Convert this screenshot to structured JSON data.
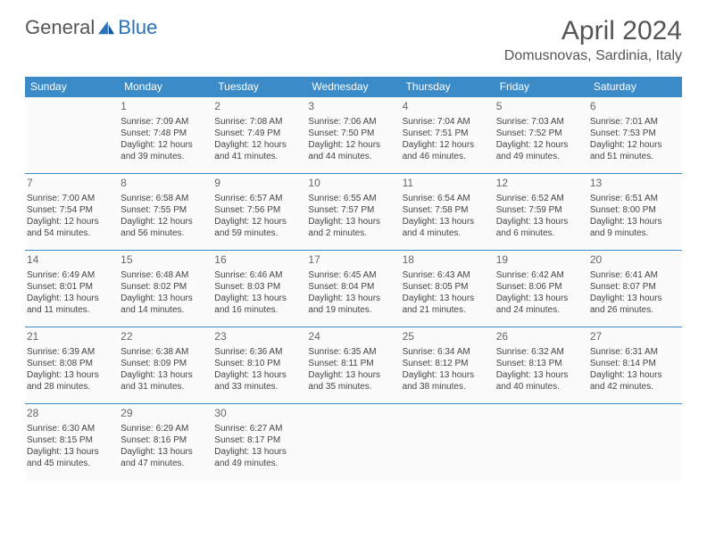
{
  "brand": {
    "part1": "General",
    "part2": "Blue"
  },
  "title": "April 2024",
  "location": "Domusnovas, Sardinia, Italy",
  "colors": {
    "header_bg": "#3b8bc9",
    "header_text": "#ffffff",
    "cell_border": "#3b8bc9",
    "text": "#444444",
    "brand_blue": "#2a71b8"
  },
  "day_headers": [
    "Sunday",
    "Monday",
    "Tuesday",
    "Wednesday",
    "Thursday",
    "Friday",
    "Saturday"
  ],
  "weeks": [
    [
      null,
      {
        "n": "1",
        "sr": "Sunrise: 7:09 AM",
        "ss": "Sunset: 7:48 PM",
        "d1": "Daylight: 12 hours",
        "d2": "and 39 minutes."
      },
      {
        "n": "2",
        "sr": "Sunrise: 7:08 AM",
        "ss": "Sunset: 7:49 PM",
        "d1": "Daylight: 12 hours",
        "d2": "and 41 minutes."
      },
      {
        "n": "3",
        "sr": "Sunrise: 7:06 AM",
        "ss": "Sunset: 7:50 PM",
        "d1": "Daylight: 12 hours",
        "d2": "and 44 minutes."
      },
      {
        "n": "4",
        "sr": "Sunrise: 7:04 AM",
        "ss": "Sunset: 7:51 PM",
        "d1": "Daylight: 12 hours",
        "d2": "and 46 minutes."
      },
      {
        "n": "5",
        "sr": "Sunrise: 7:03 AM",
        "ss": "Sunset: 7:52 PM",
        "d1": "Daylight: 12 hours",
        "d2": "and 49 minutes."
      },
      {
        "n": "6",
        "sr": "Sunrise: 7:01 AM",
        "ss": "Sunset: 7:53 PM",
        "d1": "Daylight: 12 hours",
        "d2": "and 51 minutes."
      }
    ],
    [
      {
        "n": "7",
        "sr": "Sunrise: 7:00 AM",
        "ss": "Sunset: 7:54 PM",
        "d1": "Daylight: 12 hours",
        "d2": "and 54 minutes."
      },
      {
        "n": "8",
        "sr": "Sunrise: 6:58 AM",
        "ss": "Sunset: 7:55 PM",
        "d1": "Daylight: 12 hours",
        "d2": "and 56 minutes."
      },
      {
        "n": "9",
        "sr": "Sunrise: 6:57 AM",
        "ss": "Sunset: 7:56 PM",
        "d1": "Daylight: 12 hours",
        "d2": "and 59 minutes."
      },
      {
        "n": "10",
        "sr": "Sunrise: 6:55 AM",
        "ss": "Sunset: 7:57 PM",
        "d1": "Daylight: 13 hours",
        "d2": "and 2 minutes."
      },
      {
        "n": "11",
        "sr": "Sunrise: 6:54 AM",
        "ss": "Sunset: 7:58 PM",
        "d1": "Daylight: 13 hours",
        "d2": "and 4 minutes."
      },
      {
        "n": "12",
        "sr": "Sunrise: 6:52 AM",
        "ss": "Sunset: 7:59 PM",
        "d1": "Daylight: 13 hours",
        "d2": "and 6 minutes."
      },
      {
        "n": "13",
        "sr": "Sunrise: 6:51 AM",
        "ss": "Sunset: 8:00 PM",
        "d1": "Daylight: 13 hours",
        "d2": "and 9 minutes."
      }
    ],
    [
      {
        "n": "14",
        "sr": "Sunrise: 6:49 AM",
        "ss": "Sunset: 8:01 PM",
        "d1": "Daylight: 13 hours",
        "d2": "and 11 minutes."
      },
      {
        "n": "15",
        "sr": "Sunrise: 6:48 AM",
        "ss": "Sunset: 8:02 PM",
        "d1": "Daylight: 13 hours",
        "d2": "and 14 minutes."
      },
      {
        "n": "16",
        "sr": "Sunrise: 6:46 AM",
        "ss": "Sunset: 8:03 PM",
        "d1": "Daylight: 13 hours",
        "d2": "and 16 minutes."
      },
      {
        "n": "17",
        "sr": "Sunrise: 6:45 AM",
        "ss": "Sunset: 8:04 PM",
        "d1": "Daylight: 13 hours",
        "d2": "and 19 minutes."
      },
      {
        "n": "18",
        "sr": "Sunrise: 6:43 AM",
        "ss": "Sunset: 8:05 PM",
        "d1": "Daylight: 13 hours",
        "d2": "and 21 minutes."
      },
      {
        "n": "19",
        "sr": "Sunrise: 6:42 AM",
        "ss": "Sunset: 8:06 PM",
        "d1": "Daylight: 13 hours",
        "d2": "and 24 minutes."
      },
      {
        "n": "20",
        "sr": "Sunrise: 6:41 AM",
        "ss": "Sunset: 8:07 PM",
        "d1": "Daylight: 13 hours",
        "d2": "and 26 minutes."
      }
    ],
    [
      {
        "n": "21",
        "sr": "Sunrise: 6:39 AM",
        "ss": "Sunset: 8:08 PM",
        "d1": "Daylight: 13 hours",
        "d2": "and 28 minutes."
      },
      {
        "n": "22",
        "sr": "Sunrise: 6:38 AM",
        "ss": "Sunset: 8:09 PM",
        "d1": "Daylight: 13 hours",
        "d2": "and 31 minutes."
      },
      {
        "n": "23",
        "sr": "Sunrise: 6:36 AM",
        "ss": "Sunset: 8:10 PM",
        "d1": "Daylight: 13 hours",
        "d2": "and 33 minutes."
      },
      {
        "n": "24",
        "sr": "Sunrise: 6:35 AM",
        "ss": "Sunset: 8:11 PM",
        "d1": "Daylight: 13 hours",
        "d2": "and 35 minutes."
      },
      {
        "n": "25",
        "sr": "Sunrise: 6:34 AM",
        "ss": "Sunset: 8:12 PM",
        "d1": "Daylight: 13 hours",
        "d2": "and 38 minutes."
      },
      {
        "n": "26",
        "sr": "Sunrise: 6:32 AM",
        "ss": "Sunset: 8:13 PM",
        "d1": "Daylight: 13 hours",
        "d2": "and 40 minutes."
      },
      {
        "n": "27",
        "sr": "Sunrise: 6:31 AM",
        "ss": "Sunset: 8:14 PM",
        "d1": "Daylight: 13 hours",
        "d2": "and 42 minutes."
      }
    ],
    [
      {
        "n": "28",
        "sr": "Sunrise: 6:30 AM",
        "ss": "Sunset: 8:15 PM",
        "d1": "Daylight: 13 hours",
        "d2": "and 45 minutes."
      },
      {
        "n": "29",
        "sr": "Sunrise: 6:29 AM",
        "ss": "Sunset: 8:16 PM",
        "d1": "Daylight: 13 hours",
        "d2": "and 47 minutes."
      },
      {
        "n": "30",
        "sr": "Sunrise: 6:27 AM",
        "ss": "Sunset: 8:17 PM",
        "d1": "Daylight: 13 hours",
        "d2": "and 49 minutes."
      },
      null,
      null,
      null,
      null
    ]
  ]
}
